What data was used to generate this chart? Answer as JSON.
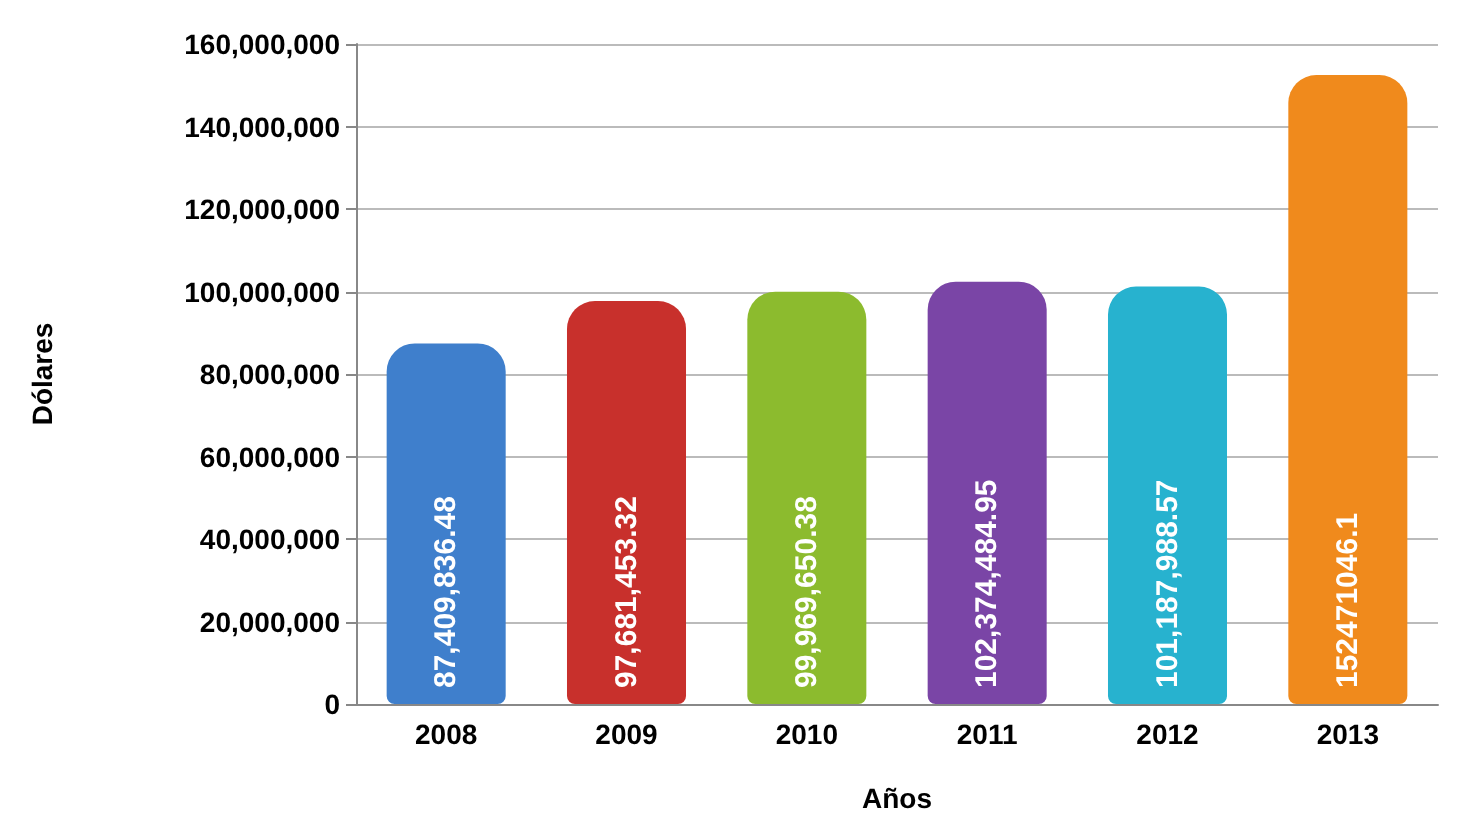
{
  "chart_data": {
    "type": "bar",
    "xlabel": "Años",
    "ylabel": "Dólares",
    "categories": [
      "2008",
      "2009",
      "2010",
      "2011",
      "2012",
      "2013"
    ],
    "values": [
      87409836.48,
      97681453.32,
      99969650.38,
      102374484.95,
      101187988.57,
      152471046.1
    ],
    "colors": [
      "#3f7fcc",
      "#c8302c",
      "#8cbb2e",
      "#7a45a6",
      "#27b2cf",
      "#f08a1c"
    ],
    "value_labels": [
      "87,409,836.48",
      "97,681,453.32",
      "99,969,650.38",
      "102,374,484.95",
      "101,187,988.57",
      "152471046.1"
    ],
    "ylim": [
      0,
      160000000
    ],
    "yticks": [
      0,
      {
        "value": 20000000,
        "label": "20,000,000"
      },
      {
        "value": 40000000,
        "label": "40,000,000"
      },
      {
        "value": 60000000,
        "label": "60,000,000"
      },
      {
        "value": 80000000,
        "label": "80,000,000"
      },
      {
        "value": 100000000,
        "label": "100,000,000"
      },
      {
        "value": 120000000,
        "label": "120,000,000"
      },
      {
        "value": 140000000,
        "label": "140,000,000"
      },
      {
        "value": 160000000,
        "label": "160,000,000"
      }
    ],
    "grid": "y"
  }
}
